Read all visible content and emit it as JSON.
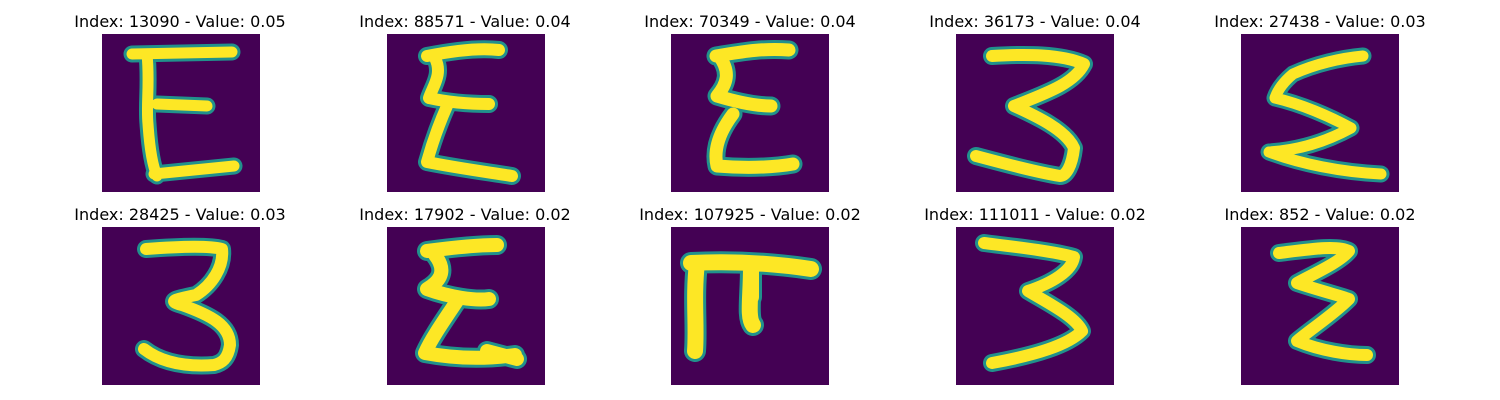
{
  "colors": {
    "background": "#440154",
    "edge": "#21918c",
    "stroke": "#fde725"
  },
  "panels": [
    {
      "title": "Index: 13090 - Value: 0.05",
      "glyph": "E"
    },
    {
      "title": "Index: 88571 - Value: 0.04",
      "glyph": "sigma-ish"
    },
    {
      "title": "Index: 70349 - Value: 0.04",
      "glyph": "sigma-ish"
    },
    {
      "title": "Index: 36173 - Value: 0.04",
      "glyph": "sigma-ish"
    },
    {
      "title": "Index: 27438 - Value: 0.03",
      "glyph": "sigma-ish"
    },
    {
      "title": "Index: 28425 - Value: 0.03",
      "glyph": "3"
    },
    {
      "title": "Index: 17902 - Value: 0.02",
      "glyph": "sigma-ish"
    },
    {
      "title": "Index: 107925 - Value: 0.02",
      "glyph": "pi-ish"
    },
    {
      "title": "Index: 111011 - Value: 0.02",
      "glyph": "3-ish"
    },
    {
      "title": "Index: 852 - Value: 0.02",
      "glyph": "z-ish"
    }
  ]
}
